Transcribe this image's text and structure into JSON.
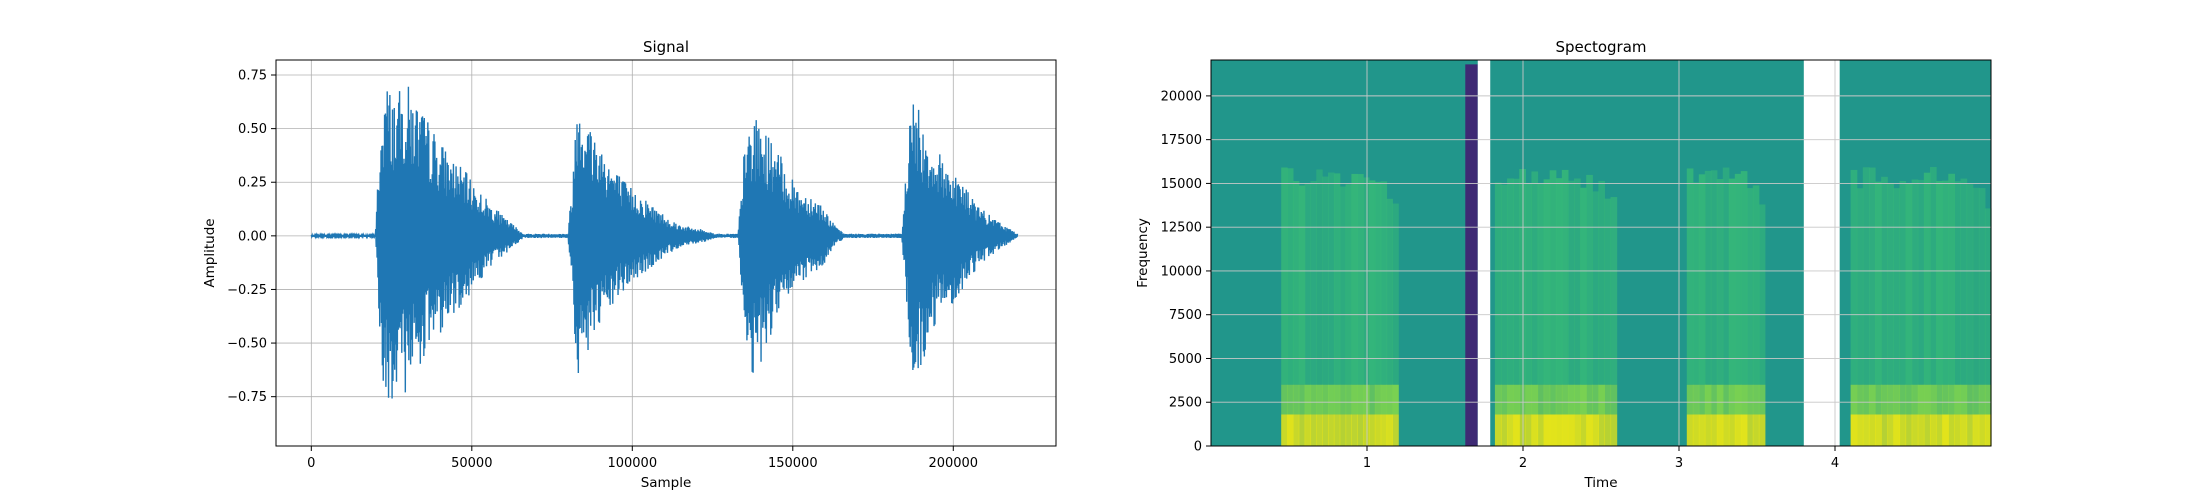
{
  "chart_data": [
    {
      "type": "line",
      "title": "Signal",
      "xlabel": "Sample",
      "ylabel": "Amplitude",
      "xlim": [
        -11000,
        232000
      ],
      "ylim": [
        -0.98,
        0.82
      ],
      "xticks": [
        0,
        50000,
        100000,
        150000,
        200000
      ],
      "xtick_labels": [
        "0",
        "50000",
        "100000",
        "150000",
        "200000"
      ],
      "yticks": [
        -0.75,
        -0.5,
        -0.25,
        0,
        0.25,
        0.5,
        0.75
      ],
      "ytick_labels": [
        "−0.75",
        "−0.50",
        "−0.25",
        "0.00",
        "0.25",
        "0.50",
        "0.75"
      ],
      "grid": true,
      "color": "#1f77b4",
      "series": [
        {
          "envelope_x": [
            0,
            20000,
            21000,
            23000,
            26000,
            30000,
            34000,
            38000,
            43000,
            48000,
            52000,
            56000,
            60000,
            64000,
            66000,
            80000,
            81500,
            83000,
            86000,
            90000,
            94000,
            98000,
            102000,
            106000,
            110000,
            114000,
            118000,
            122000,
            126000,
            133000,
            134500,
            136000,
            139000,
            142000,
            146000,
            149000,
            152000,
            155000,
            158000,
            161000,
            163000,
            166000,
            184000,
            185500,
            187000,
            190000,
            193000,
            196000,
            199000,
            202000,
            205000,
            208000,
            211000,
            214000,
            217000,
            220000
          ],
          "envelope_upper": [
            0.005,
            0.005,
            0.38,
            0.73,
            0.66,
            0.71,
            0.6,
            0.5,
            0.38,
            0.3,
            0.22,
            0.15,
            0.09,
            0.04,
            0.01,
            0.01,
            0.3,
            0.73,
            0.55,
            0.45,
            0.33,
            0.25,
            0.2,
            0.15,
            0.1,
            0.06,
            0.04,
            0.03,
            0.01,
            0.01,
            0.35,
            0.51,
            0.55,
            0.48,
            0.38,
            0.28,
            0.22,
            0.2,
            0.17,
            0.1,
            0.05,
            0.01,
            0.01,
            0.35,
            0.7,
            0.55,
            0.45,
            0.38,
            0.33,
            0.28,
            0.2,
            0.14,
            0.1,
            0.07,
            0.04,
            0.01
          ],
          "envelope_lower": [
            -0.005,
            -0.005,
            -0.4,
            -0.8,
            -0.9,
            -0.7,
            -0.6,
            -0.5,
            -0.4,
            -0.3,
            -0.22,
            -0.15,
            -0.09,
            -0.04,
            -0.01,
            -0.01,
            -0.3,
            -0.75,
            -0.55,
            -0.45,
            -0.33,
            -0.25,
            -0.2,
            -0.15,
            -0.1,
            -0.06,
            -0.04,
            -0.03,
            -0.01,
            -0.01,
            -0.35,
            -0.6,
            -0.68,
            -0.5,
            -0.38,
            -0.28,
            -0.22,
            -0.2,
            -0.17,
            -0.1,
            -0.05,
            -0.01,
            -0.01,
            -0.35,
            -0.7,
            -0.65,
            -0.45,
            -0.38,
            -0.33,
            -0.28,
            -0.2,
            -0.14,
            -0.1,
            -0.07,
            -0.04,
            -0.01
          ]
        }
      ]
    },
    {
      "type": "heatmap",
      "title": "Spectogram",
      "xlabel": "Time",
      "ylabel": "Frequency",
      "xlim": [
        0,
        5.0
      ],
      "ylim": [
        0,
        22050
      ],
      "xticks": [
        1,
        2,
        3,
        4
      ],
      "xtick_labels": [
        "1",
        "2",
        "3",
        "4"
      ],
      "yticks": [
        0,
        2500,
        5000,
        7500,
        10000,
        12500,
        15000,
        17500,
        20000
      ],
      "ytick_labels": [
        "0",
        "2500",
        "5000",
        "7500",
        "10000",
        "12500",
        "15000",
        "17500",
        "20000"
      ],
      "grid": true,
      "colormap": "viridis",
      "background_color": "#21968b",
      "band_color_low": "#e5e419",
      "band_color_mid": "#7ad151",
      "band_color_high": "#35b779",
      "gap_color": "#ffffff",
      "dark_strip_color": "#3e2a74",
      "active_segments": [
        {
          "start": 0.45,
          "end": 1.2
        },
        {
          "start": 1.82,
          "end": 2.6
        },
        {
          "start": 3.05,
          "end": 3.55
        },
        {
          "start": 4.1,
          "end": 5.0
        }
      ],
      "active_max_freq": 16000,
      "dark_strips": [
        {
          "start": 1.63,
          "end": 1.71,
          "max_freq": 21800
        }
      ],
      "gaps": [
        {
          "start": 1.71,
          "end": 1.79
        },
        {
          "start": 3.8,
          "end": 4.03
        }
      ]
    }
  ]
}
